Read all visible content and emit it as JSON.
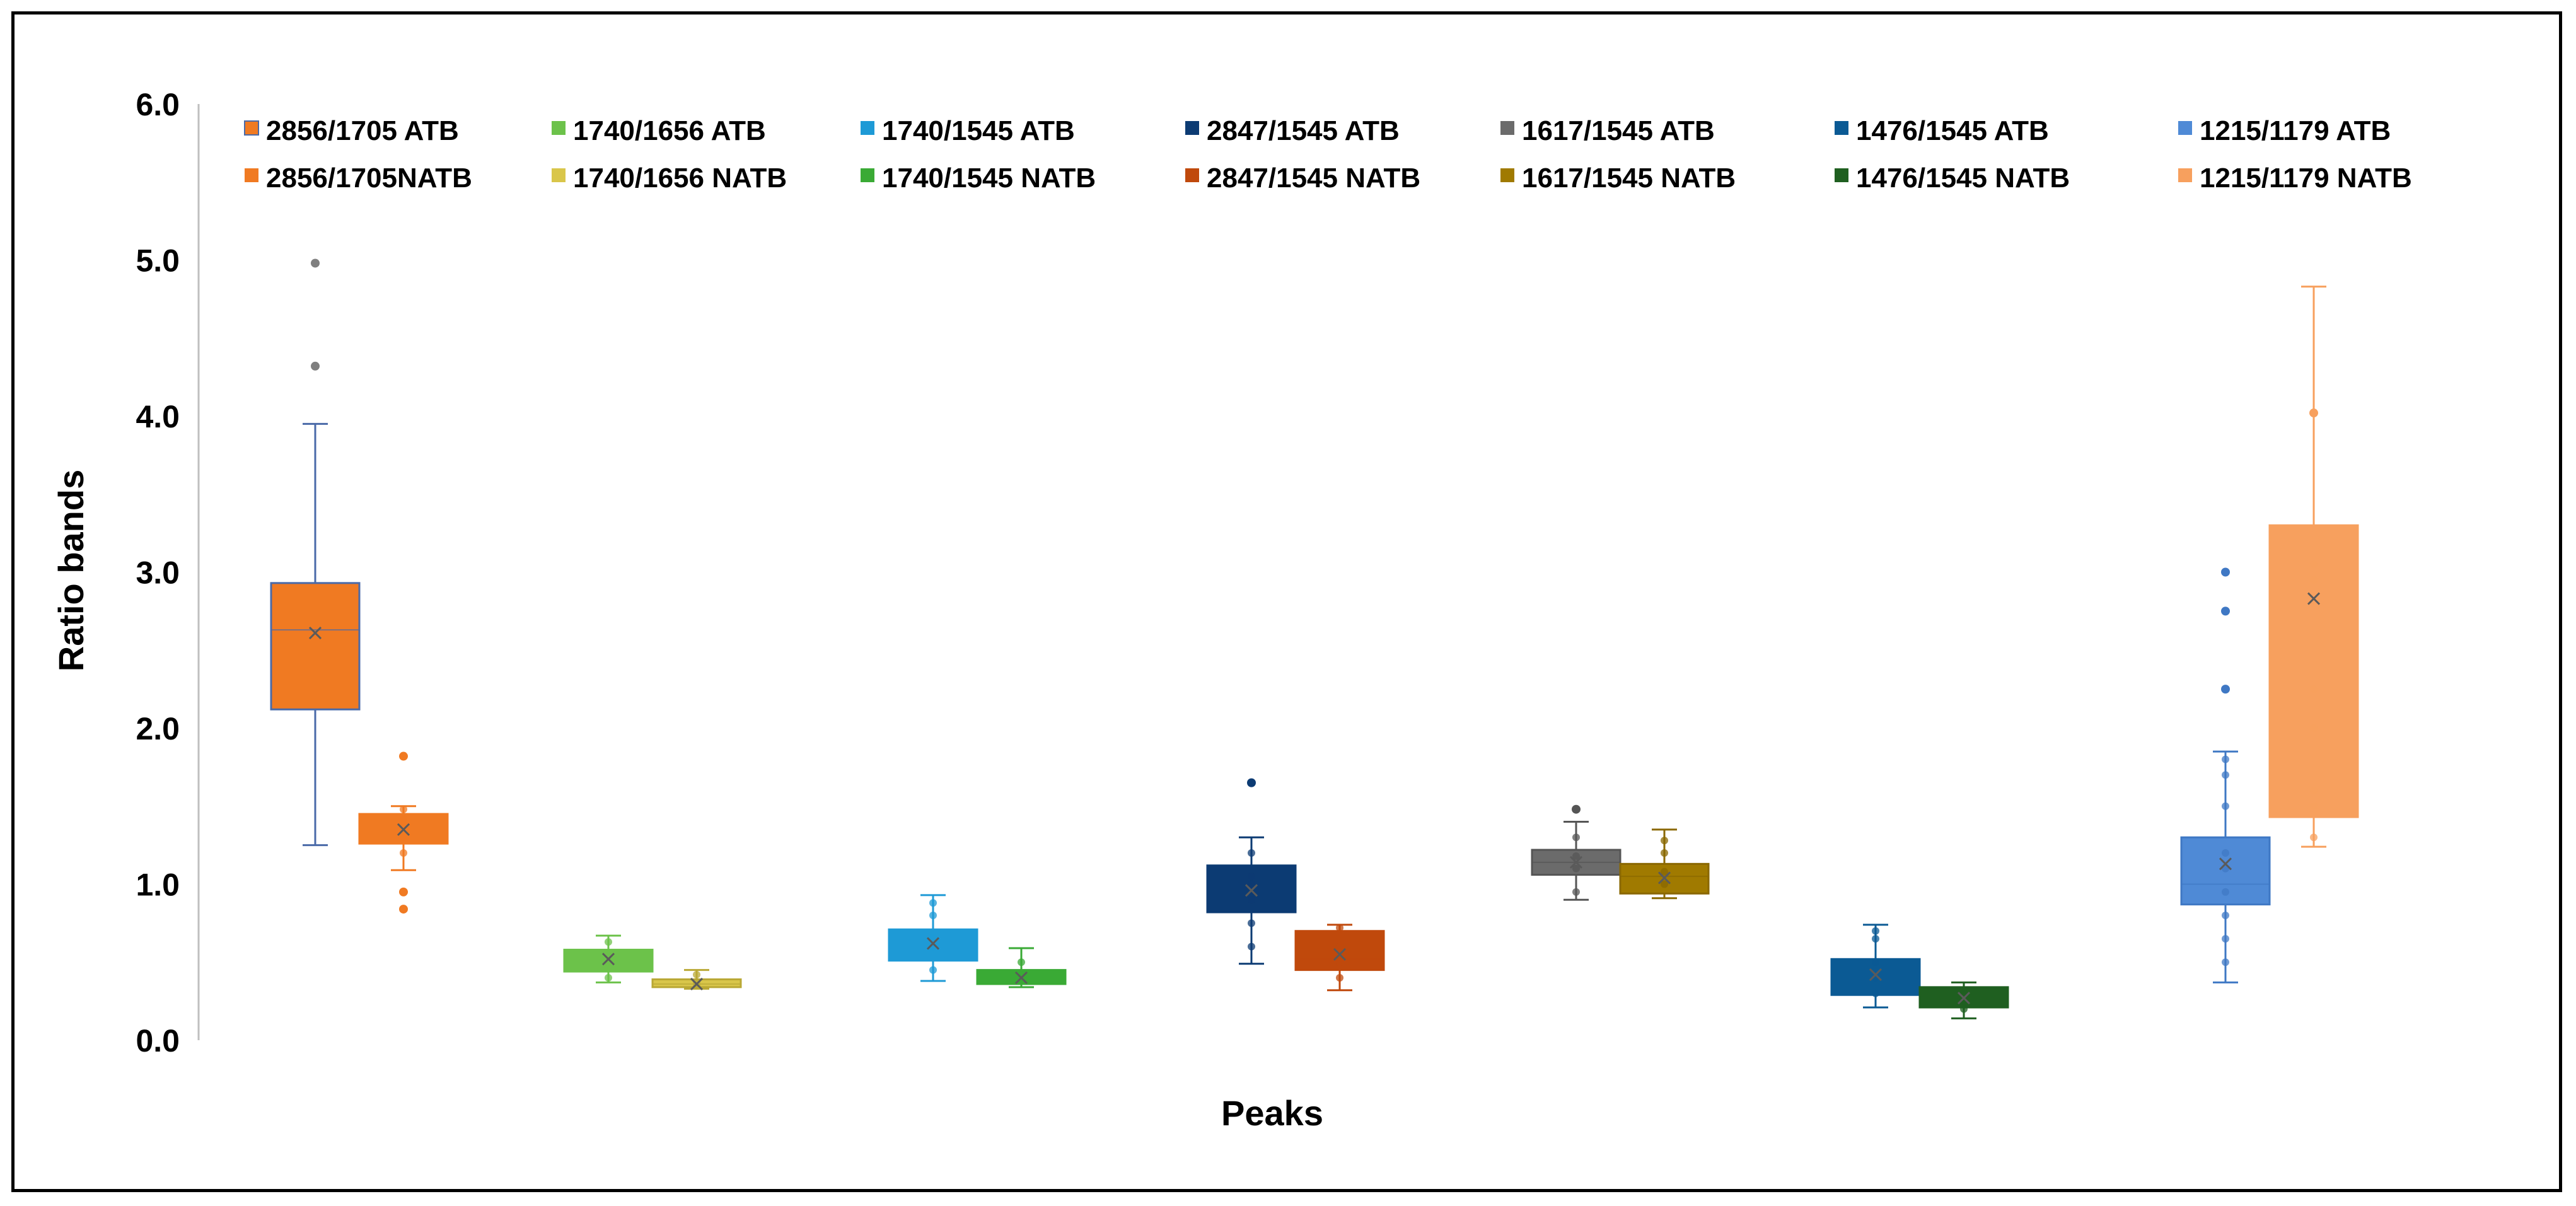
{
  "chart_data": {
    "type": "boxplot",
    "xlabel": "Peaks",
    "ylabel": "Ratio bands",
    "ylim": [
      0,
      6
    ],
    "yticks": [
      "0.0",
      "1.0",
      "2.0",
      "3.0",
      "4.0",
      "5.0",
      "6.0"
    ],
    "legend_position": "top",
    "series": [
      {
        "name": "2856/1705 ATB",
        "color": "#f07a22",
        "edge": "#4a6aa8",
        "group": 0,
        "slot": 0,
        "min": 1.25,
        "q1": 2.12,
        "median": 2.63,
        "q3": 2.93,
        "max": 3.95,
        "mean": 2.61,
        "outliers": [
          4.32,
          4.98
        ],
        "points": []
      },
      {
        "name": "2856/1705NATB",
        "color": "#f07a22",
        "edge": "#f07a22",
        "group": 0,
        "slot": 1,
        "min": 1.09,
        "q1": 1.26,
        "median": 1.36,
        "q3": 1.45,
        "max": 1.5,
        "mean": 1.35,
        "outliers": [
          0.84,
          0.95,
          1.82
        ],
        "points": [
          1.2,
          1.3,
          1.38,
          1.42,
          1.48
        ]
      },
      {
        "name": "1740/1656 ATB",
        "color": "#6cc24a",
        "edge": "#6cc24a",
        "group": 1,
        "slot": 0,
        "min": 0.37,
        "q1": 0.44,
        "median": 0.53,
        "q3": 0.58,
        "max": 0.67,
        "mean": 0.52,
        "outliers": [],
        "points": [
          0.4,
          0.5,
          0.55,
          0.63
        ]
      },
      {
        "name": "1740/1656 NATB",
        "color": "#d9c64a",
        "edge": "#b9a835",
        "group": 1,
        "slot": 1,
        "min": 0.33,
        "q1": 0.34,
        "median": 0.36,
        "q3": 0.39,
        "max": 0.45,
        "mean": 0.36,
        "outliers": [],
        "points": [
          0.35,
          0.37,
          0.42
        ]
      },
      {
        "name": "1740/1545  ATB",
        "color": "#1e9ad6",
        "edge": "#1e9ad6",
        "group": 2,
        "slot": 0,
        "min": 0.38,
        "q1": 0.51,
        "median": 0.7,
        "q3": 0.71,
        "max": 0.93,
        "mean": 0.62,
        "outliers": [],
        "points": [
          0.45,
          0.6,
          0.66,
          0.8,
          0.88
        ]
      },
      {
        "name": "1740/1545  NATB",
        "color": "#3aaa35",
        "edge": "#3aaa35",
        "group": 2,
        "slot": 1,
        "min": 0.34,
        "q1": 0.36,
        "median": 0.39,
        "q3": 0.45,
        "max": 0.59,
        "mean": 0.4,
        "outliers": [],
        "points": [
          0.38,
          0.42,
          0.5
        ]
      },
      {
        "name": "2847/1545 ATB",
        "color": "#0c3b73",
        "edge": "#0c3b73",
        "group": 3,
        "slot": 0,
        "min": 0.49,
        "q1": 0.82,
        "median": 0.97,
        "q3": 1.12,
        "max": 1.3,
        "mean": 0.96,
        "outliers": [
          1.65
        ],
        "points": [
          0.6,
          0.75,
          0.9,
          1.0,
          1.05,
          1.2
        ]
      },
      {
        "name": "2847/1545 NATB",
        "color": "#c0490c",
        "edge": "#c0490c",
        "group": 3,
        "slot": 1,
        "min": 0.32,
        "q1": 0.45,
        "median": 0.52,
        "q3": 0.7,
        "max": 0.74,
        "mean": 0.55,
        "outliers": [],
        "points": [
          0.4,
          0.5,
          0.6,
          0.72
        ]
      },
      {
        "name": "1617/1545  ATB",
        "color": "#6b6b6b",
        "edge": "#555555",
        "group": 4,
        "slot": 0,
        "min": 0.9,
        "q1": 1.06,
        "median": 1.14,
        "q3": 1.22,
        "max": 1.4,
        "mean": 1.14,
        "outliers": [
          1.48
        ],
        "points": [
          0.95,
          1.1,
          1.18,
          1.3
        ]
      },
      {
        "name": "1617/1545  NATB",
        "color": "#a07a00",
        "edge": "#8a6800",
        "group": 4,
        "slot": 1,
        "min": 0.91,
        "q1": 0.94,
        "median": 1.05,
        "q3": 1.13,
        "max": 1.35,
        "mean": 1.04,
        "outliers": [],
        "points": [
          1.0,
          1.08,
          1.2,
          1.28
        ]
      },
      {
        "name": "1476/1545 ATB",
        "color": "#0b5a94",
        "edge": "#0b5a94",
        "group": 5,
        "slot": 0,
        "min": 0.21,
        "q1": 0.29,
        "median": 0.42,
        "q3": 0.52,
        "max": 0.74,
        "mean": 0.42,
        "outliers": [],
        "points": [
          0.3,
          0.4,
          0.5,
          0.65,
          0.7
        ]
      },
      {
        "name": "1476/1545 NATB",
        "color": "#1f5f20",
        "edge": "#1f5f20",
        "group": 5,
        "slot": 1,
        "min": 0.14,
        "q1": 0.21,
        "median": 0.26,
        "q3": 0.34,
        "max": 0.37,
        "mean": 0.27,
        "outliers": [],
        "points": [
          0.2,
          0.25,
          0.3
        ]
      },
      {
        "name": "1215/1179 ATB",
        "color": "#4f8ad6",
        "edge": "#3f78c4",
        "group": 6,
        "slot": 0,
        "min": 0.37,
        "q1": 0.87,
        "median": 1.0,
        "q3": 1.3,
        "max": 1.85,
        "mean": 1.13,
        "outliers": [
          2.25,
          2.75,
          3.0
        ],
        "points": [
          0.5,
          0.65,
          0.8,
          0.95,
          1.1,
          1.2,
          1.5,
          1.7,
          1.8
        ]
      },
      {
        "name": "1215/1179 NATB",
        "color": "#f7a05e",
        "edge": "#f7a05e",
        "group": 6,
        "slot": 1,
        "min": 1.24,
        "q1": 1.43,
        "median": 1.73,
        "q3": 3.3,
        "max": 4.83,
        "mean": 2.83,
        "outliers": [
          4.02
        ],
        "points": [
          1.3,
          1.5,
          1.6,
          2.0,
          2.25,
          2.95,
          3.05
        ]
      }
    ]
  }
}
